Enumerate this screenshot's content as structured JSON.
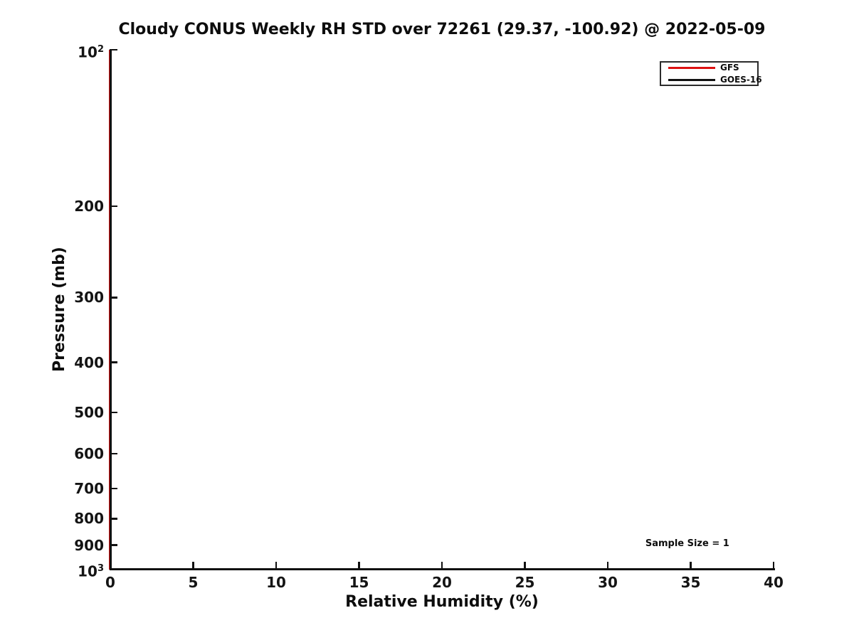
{
  "figure": {
    "background": "#ffffff",
    "text_color": "#0d0d0d",
    "axis_color": "#111111"
  },
  "chart_data": {
    "type": "line",
    "title": "Cloudy CONUS Weekly RH STD over 72261 (29.37, -100.92) @ 2022-05-09",
    "xlabel": "Relative Humidity (%)",
    "ylabel": "Pressure (mb)",
    "xlim": [
      0,
      40
    ],
    "x_ticks": [
      0,
      5,
      10,
      15,
      20,
      25,
      30,
      35,
      40
    ],
    "y_scale": "log",
    "y_inverted": true,
    "ylim": [
      100,
      1000
    ],
    "y_ticks": [
      {
        "value": 100,
        "label": "10",
        "sup": "2"
      },
      {
        "value": 200,
        "label": "200"
      },
      {
        "value": 300,
        "label": "300"
      },
      {
        "value": 400,
        "label": "400"
      },
      {
        "value": 500,
        "label": "500"
      },
      {
        "value": 600,
        "label": "600"
      },
      {
        "value": 700,
        "label": "700"
      },
      {
        "value": 800,
        "label": "800"
      },
      {
        "value": 900,
        "label": "900"
      },
      {
        "value": 1000,
        "label": "10",
        "sup": "3"
      }
    ],
    "grid": false,
    "legend": {
      "position": "upper right",
      "entries": [
        {
          "name": "GFS",
          "color": "#dd1111"
        },
        {
          "name": "GOES-16",
          "color": "#111111"
        }
      ]
    },
    "series": [
      {
        "name": "GFS",
        "color": "#dd1111",
        "x_constant": 0,
        "note": "RH STD ~0 at all pressure levels; line coincides with y-axis"
      },
      {
        "name": "GOES-16",
        "color": "#111111",
        "x_constant": 0,
        "note": "RH STD ~0 at all pressure levels; line coincides with y-axis, drawn over GFS"
      }
    ],
    "annotations": [
      {
        "text": "Sample Size = 1",
        "x": 34.8,
        "y": 898
      }
    ]
  }
}
